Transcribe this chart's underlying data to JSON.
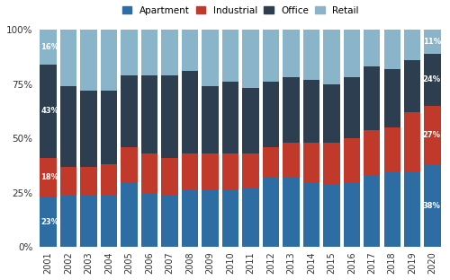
{
  "years": [
    "2001",
    "2002",
    "2003",
    "2004",
    "2005",
    "2006",
    "2007",
    "2008",
    "2009",
    "2010",
    "2011",
    "2012",
    "2013",
    "2014",
    "2015",
    "2016",
    "2017",
    "2018",
    "2019",
    "2020"
  ],
  "apartment": [
    23,
    24,
    24,
    24,
    30,
    25,
    24,
    26,
    26,
    26,
    27,
    32,
    32,
    30,
    29,
    30,
    33,
    35,
    35,
    38
  ],
  "industrial": [
    18,
    13,
    13,
    14,
    16,
    18,
    17,
    17,
    17,
    17,
    16,
    14,
    16,
    18,
    19,
    20,
    21,
    20,
    27,
    27
  ],
  "office": [
    43,
    37,
    35,
    34,
    33,
    36,
    38,
    38,
    31,
    33,
    30,
    30,
    30,
    29,
    27,
    28,
    29,
    27,
    24,
    24
  ],
  "retail": [
    16,
    26,
    28,
    28,
    21,
    21,
    21,
    19,
    26,
    24,
    27,
    24,
    22,
    23,
    25,
    22,
    17,
    18,
    14,
    11
  ],
  "colors": {
    "apartment": "#2e6da4",
    "industrial": "#c0392b",
    "office": "#2c3e50",
    "retail": "#8ab4c9"
  },
  "label_2001": {
    "apartment": "23%",
    "industrial": "18%",
    "office": "43%",
    "retail": "16%"
  },
  "label_2020": {
    "apartment": "38%",
    "industrial": "27%",
    "office": "24%",
    "retail": "11%"
  },
  "background_color": "#ffffff",
  "legend_labels": [
    "Apartment",
    "Industrial",
    "Office",
    "Retail"
  ],
  "yticks": [
    0,
    25,
    50,
    75,
    100
  ],
  "ytick_labels": [
    "0%",
    "25%",
    "50%",
    "75%",
    "100%"
  ]
}
